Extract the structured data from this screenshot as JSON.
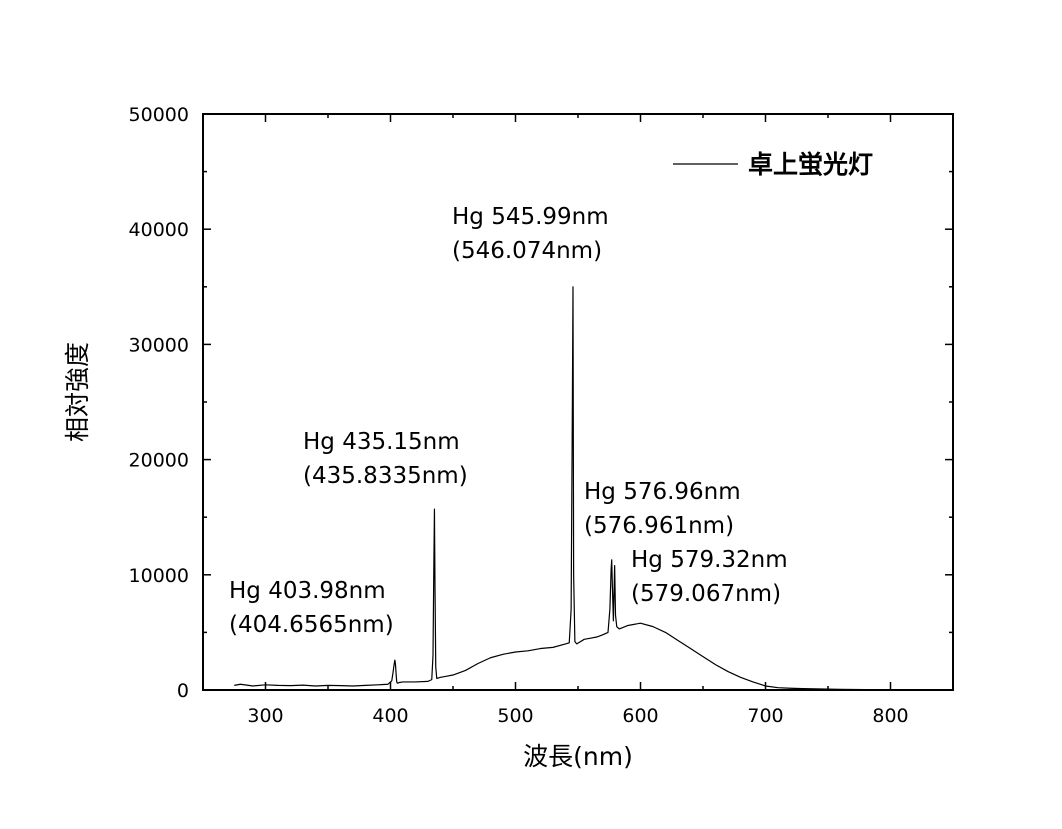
{
  "chart_data": {
    "type": "line",
    "xlabel": "波長(nm)",
    "ylabel": "相対強度",
    "xlim": [
      250,
      850
    ],
    "ylim": [
      0,
      50000
    ],
    "x_ticks": [
      300,
      400,
      500,
      600,
      700,
      800
    ],
    "y_ticks": [
      0,
      10000,
      20000,
      30000,
      40000,
      50000
    ],
    "grid": false,
    "legend_position": "top-right",
    "series": [
      {
        "name": "卓上蛍光灯",
        "color": "#000000",
        "x": [
          275,
          280,
          290,
          300,
          310,
          320,
          330,
          340,
          350,
          360,
          370,
          380,
          390,
          398,
          401,
          402,
          403,
          403.5,
          404,
          404.6,
          405,
          405.5,
          406,
          407,
          410,
          420,
          430,
          433,
          434,
          434.6,
          435.15,
          435.6,
          436.2,
          437,
          440,
          445,
          450,
          460,
          470,
          480,
          490,
          500,
          510,
          520,
          530,
          540,
          543,
          544.5,
          545.5,
          545.99,
          546.5,
          547.5,
          549,
          555,
          560,
          565,
          570,
          574,
          575.5,
          576.5,
          576.96,
          577.5,
          578.3,
          579.32,
          580,
          581,
          583,
          590,
          600,
          610,
          620,
          630,
          640,
          650,
          660,
          670,
          680,
          690,
          700,
          710,
          720,
          730,
          740,
          750,
          760,
          770,
          780
        ],
        "y": [
          400,
          500,
          350,
          450,
          400,
          380,
          420,
          350,
          400,
          380,
          350,
          400,
          450,
          500,
          800,
          1500,
          2300,
          2600,
          2200,
          1200,
          700,
          600,
          600,
          650,
          700,
          700,
          750,
          900,
          3000,
          10000,
          15700,
          9000,
          2000,
          1000,
          1100,
          1200,
          1300,
          1700,
          2300,
          2800,
          3100,
          3300,
          3400,
          3600,
          3700,
          4000,
          4100,
          7000,
          25000,
          35000,
          10000,
          4200,
          4000,
          4400,
          4500,
          4600,
          4800,
          5000,
          7000,
          10500,
          11300,
          9000,
          6000,
          10800,
          6500,
          5500,
          5300,
          5600,
          5800,
          5500,
          5000,
          4300,
          3600,
          2900,
          2200,
          1600,
          1100,
          700,
          350,
          200,
          150,
          120,
          100,
          80,
          60,
          50,
          40
        ]
      }
    ],
    "annotations": [
      {
        "line1": "Hg 403.98nm",
        "line2": "(404.6565nm)",
        "x": 403.98
      },
      {
        "line1": "Hg 435.15nm",
        "line2": "(435.8335nm)",
        "x": 435.15
      },
      {
        "line1": "Hg 545.99nm",
        "line2": "(546.074nm)",
        "x": 545.99
      },
      {
        "line1": "Hg 576.96nm",
        "line2": "(576.961nm)",
        "x": 576.96
      },
      {
        "line1": "Hg 579.32nm",
        "line2": "(579.067nm)",
        "x": 579.32
      }
    ]
  }
}
